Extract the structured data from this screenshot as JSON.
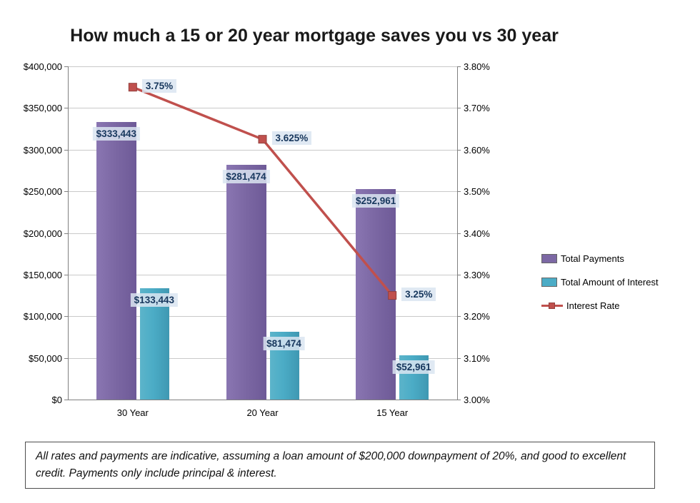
{
  "title": "How much a 15 or 20 year mortgage saves you vs 30 year",
  "chart_data": {
    "type": "bar+line combo",
    "categories": [
      "30 Year",
      "20 Year",
      "15 Year"
    ],
    "series": [
      {
        "name": "Total Payments",
        "type": "bar",
        "axis": "left",
        "color": "#7c68a4",
        "values": [
          333443,
          281474,
          252961
        ],
        "labels": [
          "$333,443",
          "$281,474",
          "$252,961"
        ]
      },
      {
        "name": "Total Amount of Interest",
        "type": "bar",
        "axis": "left",
        "color": "#4bacc6",
        "values": [
          133443,
          81474,
          52961
        ],
        "labels": [
          "$133,443",
          "$81,474",
          "$52,961"
        ]
      },
      {
        "name": "Interest Rate",
        "type": "line",
        "axis": "right",
        "color": "#c0504d",
        "values": [
          3.75,
          3.625,
          3.25
        ],
        "labels": [
          "3.75%",
          "3.625%",
          "3.25%"
        ]
      }
    ],
    "left_axis": {
      "min": 0,
      "max": 400000,
      "step": 50000,
      "tick_labels": [
        "$0",
        "$50,000",
        "$100,000",
        "$150,000",
        "$200,000",
        "$250,000",
        "$300,000",
        "$350,000",
        "$400,000"
      ]
    },
    "right_axis": {
      "min": 3.0,
      "max": 3.8,
      "step": 0.1,
      "tick_labels": [
        "3.00%",
        "3.10%",
        "3.20%",
        "3.30%",
        "3.40%",
        "3.50%",
        "3.60%",
        "3.70%",
        "3.80%"
      ]
    },
    "grid": true,
    "legend_position": "right",
    "legend": [
      "Total Payments",
      "Total Amount of Interest",
      "Interest Rate"
    ]
  },
  "footnote": "All rates and payments are indicative, assuming a loan amount of $200,000  downpayment of 20%, and good to excellent credit. Payments only include principal & interest.",
  "colors": {
    "bar_total_payments": "#7c68a4",
    "bar_total_interest": "#4bacc6",
    "line_interest_rate": "#c0504d",
    "value_label_bg": "#dbe5f1",
    "value_label_text": "#17375d",
    "gridline": "#c9c9c9",
    "axis": "#808080"
  }
}
